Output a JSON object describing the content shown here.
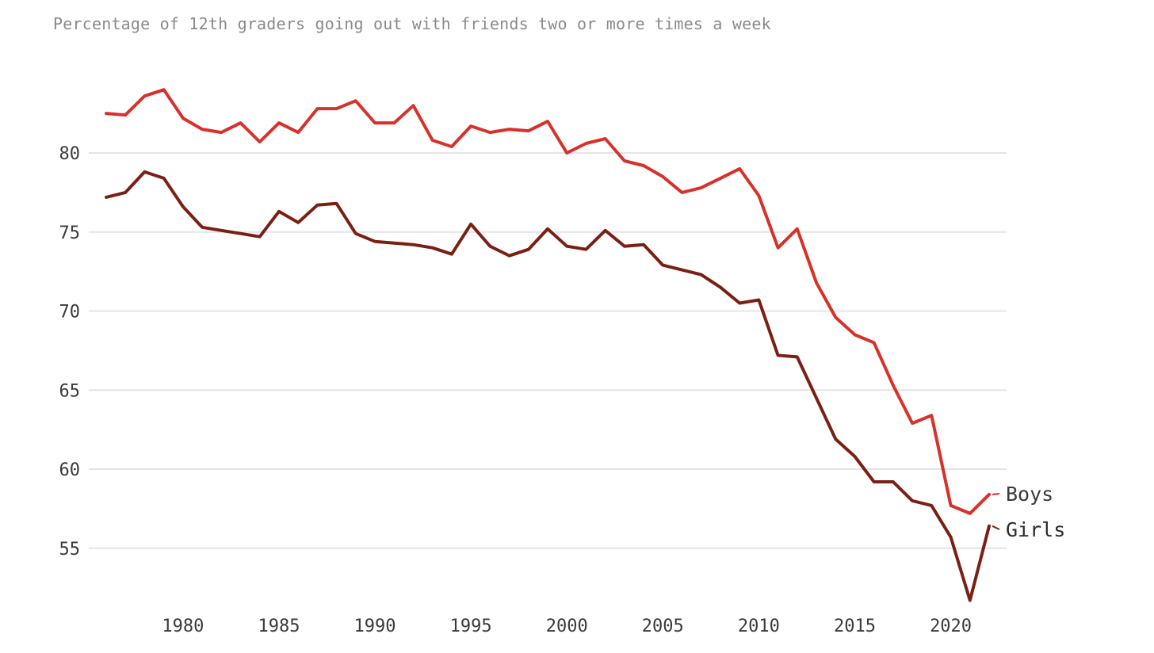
{
  "chart_data": {
    "type": "line",
    "title": "Percentage of 12th graders going out with friends two or more times a week",
    "xlabel": "",
    "ylabel": "",
    "xlim": [
      1976,
      2022
    ],
    "ylim": [
      51,
      84
    ],
    "x_ticks": [
      1980,
      1985,
      1990,
      1995,
      2000,
      2005,
      2010,
      2015,
      2020
    ],
    "y_ticks": [
      55,
      60,
      65,
      70,
      75,
      80
    ],
    "grid": true,
    "x": [
      1976,
      1977,
      1978,
      1979,
      1980,
      1981,
      1982,
      1983,
      1984,
      1985,
      1986,
      1987,
      1988,
      1989,
      1990,
      1991,
      1992,
      1993,
      1994,
      1995,
      1996,
      1997,
      1998,
      1999,
      2000,
      2001,
      2002,
      2003,
      2004,
      2005,
      2006,
      2007,
      2008,
      2009,
      2010,
      2011,
      2012,
      2013,
      2014,
      2015,
      2016,
      2017,
      2018,
      2019,
      2020,
      2021,
      2022
    ],
    "series": [
      {
        "name": "Boys",
        "color": "#d8302b",
        "values": [
          82.5,
          82.4,
          83.6,
          84.0,
          82.2,
          81.5,
          81.3,
          81.9,
          80.7,
          81.9,
          81.3,
          82.8,
          82.8,
          83.3,
          81.9,
          81.9,
          83.0,
          80.8,
          80.4,
          81.7,
          81.3,
          81.5,
          81.4,
          82.0,
          80.0,
          80.6,
          80.9,
          79.5,
          79.2,
          78.5,
          77.5,
          77.8,
          78.4,
          79.0,
          77.3,
          74.0,
          75.2,
          71.8,
          69.6,
          68.5,
          68.0,
          65.3,
          62.9,
          63.4,
          57.7,
          57.2,
          58.4
        ]
      },
      {
        "name": "Girls",
        "color": "#7a1f14",
        "values": [
          77.2,
          77.5,
          78.8,
          78.4,
          76.6,
          75.3,
          75.1,
          74.9,
          74.7,
          76.3,
          75.6,
          76.7,
          76.8,
          74.9,
          74.4,
          74.3,
          74.2,
          74.0,
          73.6,
          75.5,
          74.1,
          73.5,
          73.9,
          75.2,
          74.1,
          73.9,
          75.1,
          74.1,
          74.2,
          72.9,
          72.6,
          72.3,
          71.5,
          70.5,
          70.7,
          67.2,
          67.1,
          64.5,
          61.9,
          60.8,
          59.2,
          59.2,
          58.0,
          57.7,
          55.7,
          51.7,
          56.4
        ]
      }
    ]
  }
}
